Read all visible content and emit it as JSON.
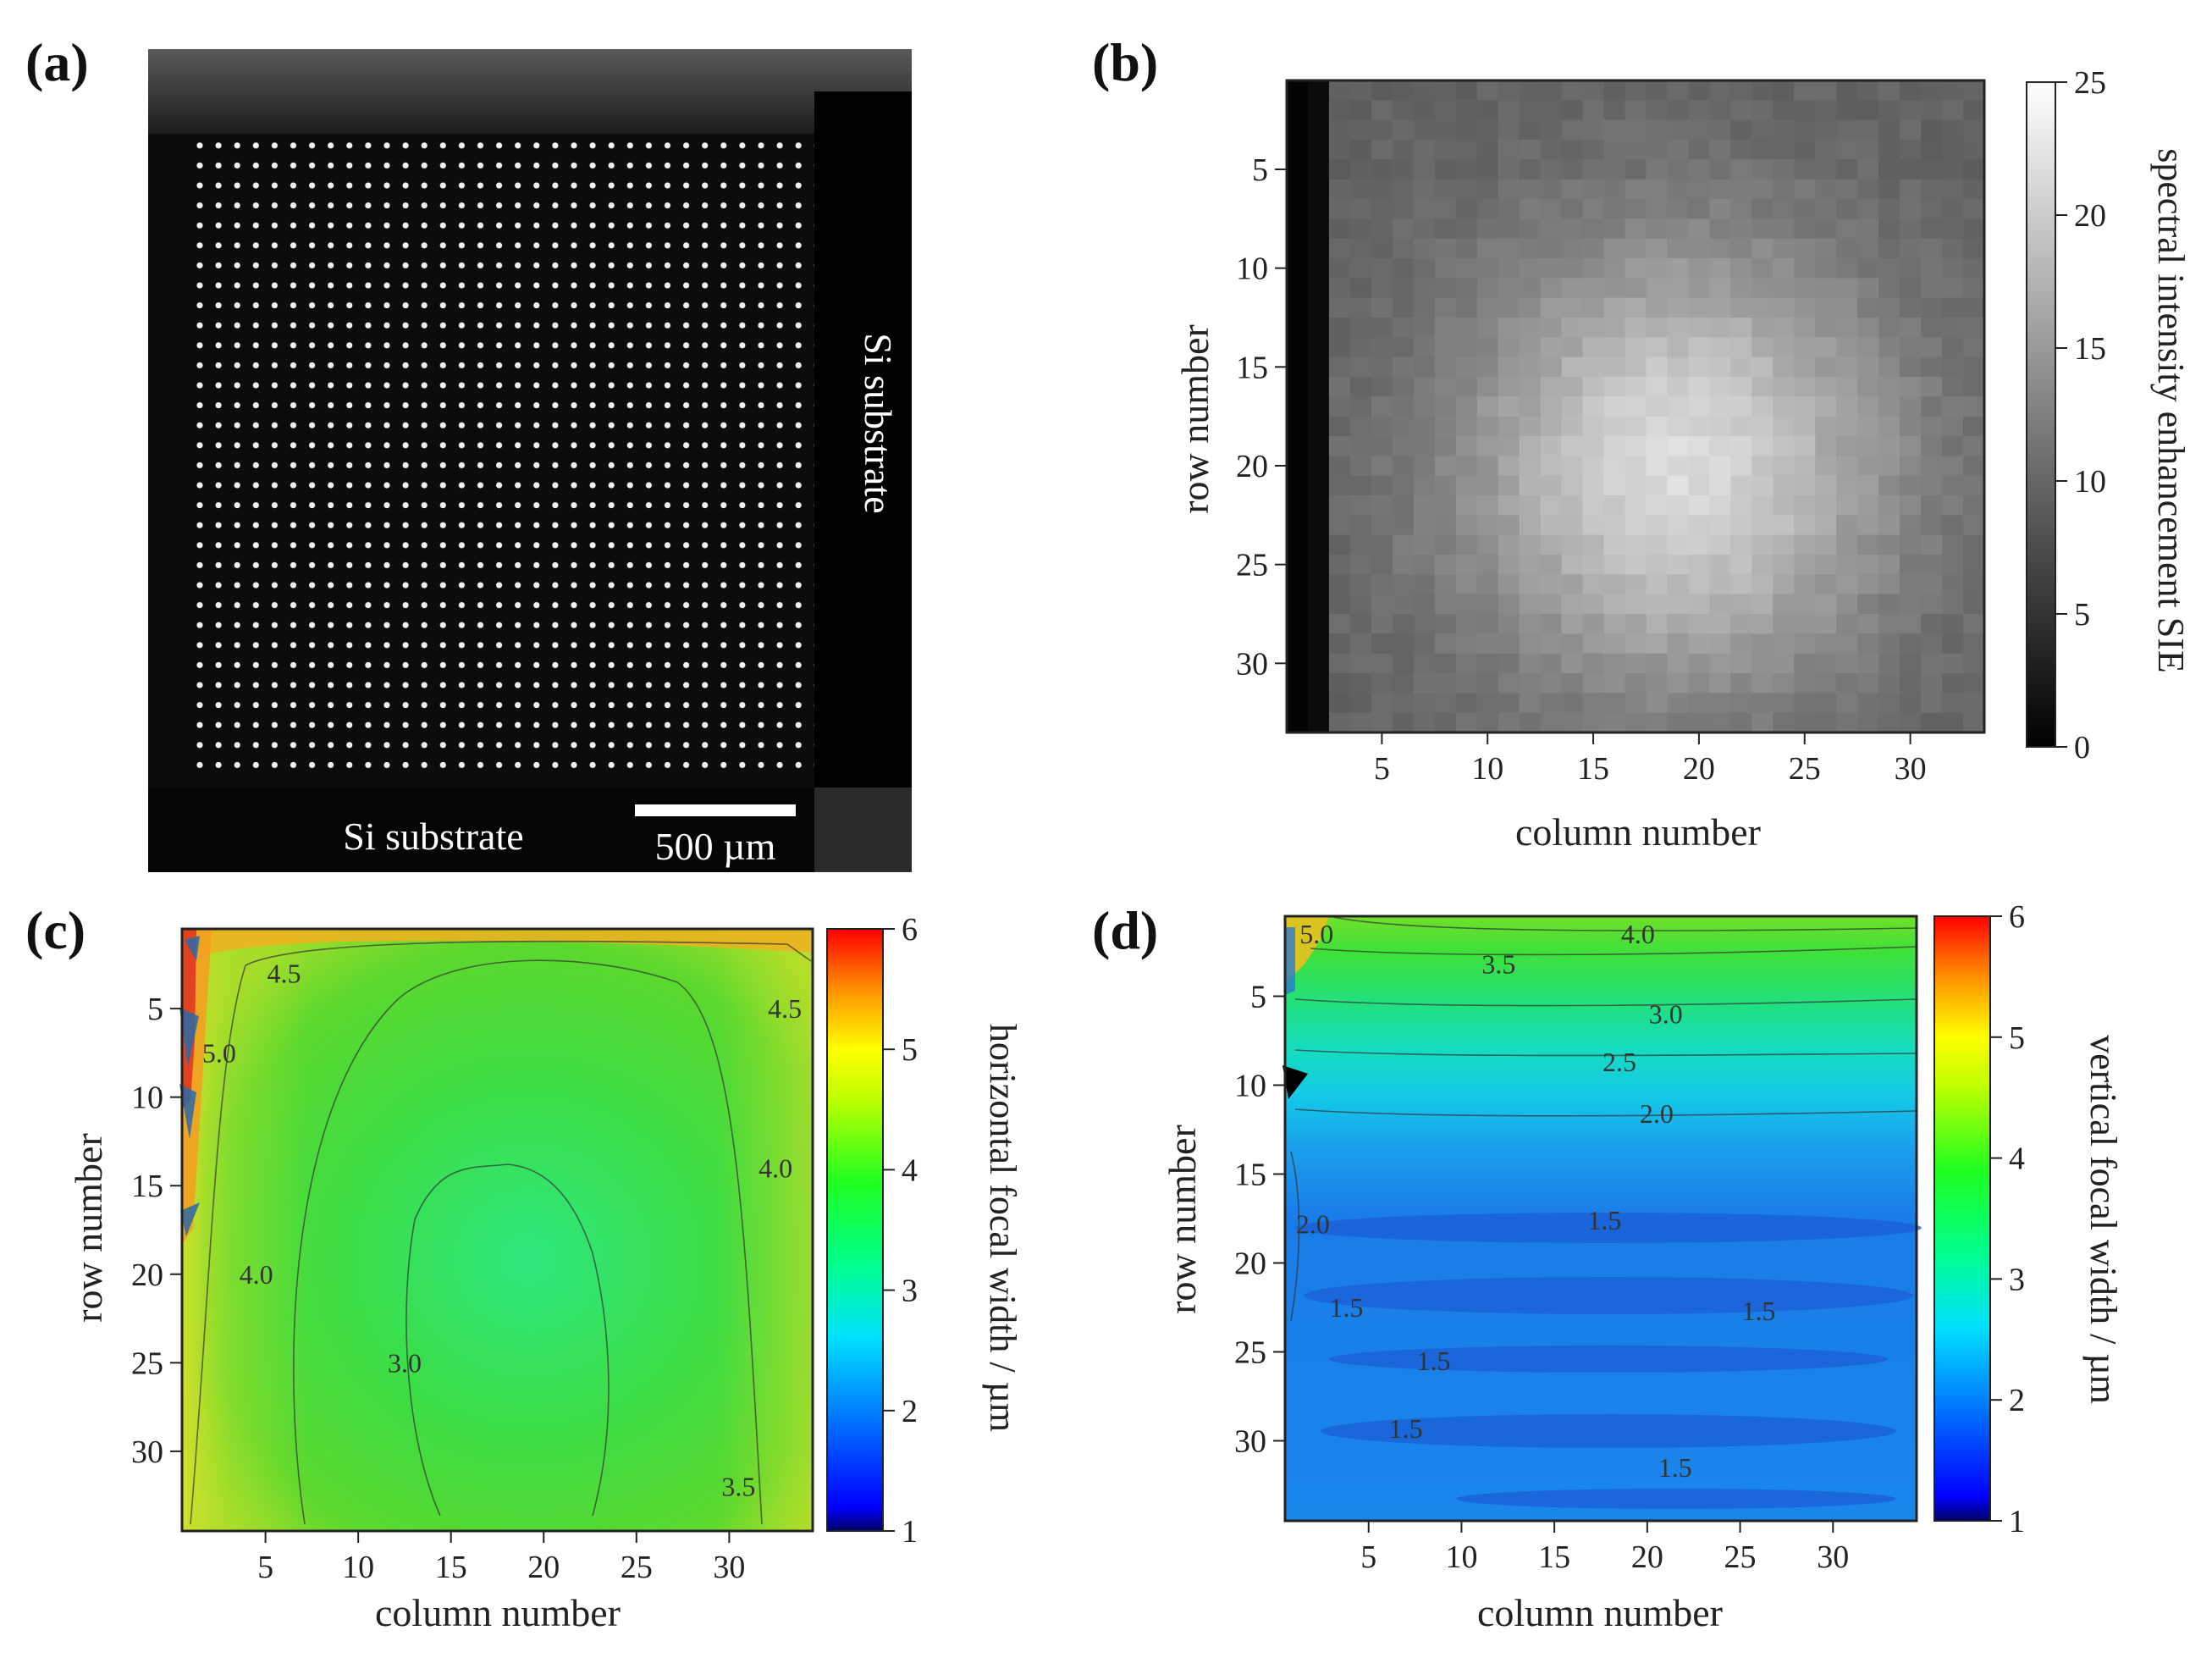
{
  "chart_data": [
    {
      "panel": "(a)",
      "type": "other",
      "description_text": {
        "annotation_right": "Si substrate",
        "annotation_bottom": "Si substrate",
        "scalebar": "500 µm"
      },
      "grid_rows": 34,
      "grid_cols": 34
    },
    {
      "panel": "(b)",
      "type": "heatmap",
      "xlabel": "column number",
      "ylabel": "row number",
      "xticks": [
        5,
        10,
        15,
        20,
        25,
        30
      ],
      "yticks": [
        5,
        10,
        15,
        20,
        25,
        30
      ],
      "xlim": [
        1,
        33
      ],
      "ylim": [
        1,
        33
      ],
      "colorbar": {
        "label": "spectral intensity enhancement SIE",
        "ticks": [
          0,
          5,
          10,
          15,
          20,
          25
        ],
        "range": [
          0,
          25
        ]
      },
      "field": {
        "peak_col": 19,
        "peak_row": 20,
        "peak_value": 21.5,
        "edge_value": 9.5,
        "dark_columns": [
          1,
          2
        ]
      }
    },
    {
      "panel": "(c)",
      "type": "contour",
      "xlabel": "column number",
      "ylabel": "row number",
      "xticks": [
        5,
        10,
        15,
        20,
        25,
        30
      ],
      "yticks": [
        5,
        10,
        15,
        20,
        25,
        30
      ],
      "xlim": [
        1,
        34
      ],
      "ylim": [
        1,
        34
      ],
      "colorbar": {
        "label": "horizontal focal width / µm",
        "ticks": [
          1,
          2,
          3,
          4,
          5,
          6
        ],
        "range": [
          1,
          6
        ]
      },
      "contour_labels": [
        {
          "text": "4.5",
          "col": 6,
          "row": 3
        },
        {
          "text": "4.5",
          "col": 33,
          "row": 5
        },
        {
          "text": "5.0",
          "col": 2.5,
          "row": 7.5
        },
        {
          "text": "4.0",
          "col": 32.5,
          "row": 14
        },
        {
          "text": "4.0",
          "col": 4.5,
          "row": 20
        },
        {
          "text": "3.0",
          "col": 12.5,
          "row": 25
        },
        {
          "text": "3.5",
          "col": 30.5,
          "row": 32
        }
      ]
    },
    {
      "panel": "(d)",
      "type": "contour",
      "xlabel": "column number",
      "ylabel": "row number",
      "xticks": [
        5,
        10,
        15,
        20,
        25,
        30
      ],
      "yticks": [
        5,
        10,
        15,
        20,
        25,
        30
      ],
      "xlim": [
        1,
        34
      ],
      "ylim": [
        1,
        34
      ],
      "colorbar": {
        "label": "vertical focal width / µm",
        "ticks": [
          1,
          2,
          3,
          4,
          5,
          6
        ],
        "range": [
          1,
          6
        ]
      },
      "contour_labels": [
        {
          "text": "5.0",
          "col": 2.2,
          "row": 1.5
        },
        {
          "text": "4.0",
          "col": 19.5,
          "row": 1.5
        },
        {
          "text": "3.5",
          "col": 12,
          "row": 3.2
        },
        {
          "text": "3.0",
          "col": 21,
          "row": 6
        },
        {
          "text": "2.5",
          "col": 18.5,
          "row": 8.7
        },
        {
          "text": "2.0",
          "col": 20.5,
          "row": 11.6
        },
        {
          "text": "2.0",
          "col": 2,
          "row": 17.8
        },
        {
          "text": "1.5",
          "col": 17.7,
          "row": 17.6
        },
        {
          "text": "1.5",
          "col": 3.8,
          "row": 22.5
        },
        {
          "text": "1.5",
          "col": 26,
          "row": 22.7
        },
        {
          "text": "1.5",
          "col": 8.5,
          "row": 25.5
        },
        {
          "text": "1.5",
          "col": 7,
          "row": 29.3
        },
        {
          "text": "1.5",
          "col": 21.5,
          "row": 31.5
        }
      ]
    }
  ]
}
